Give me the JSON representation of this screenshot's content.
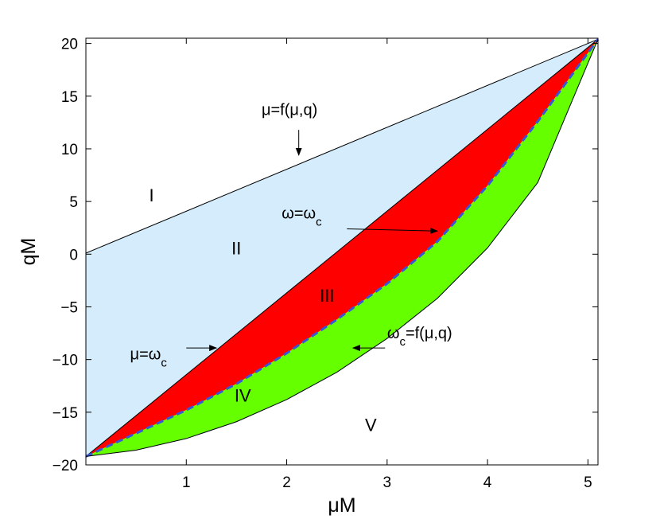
{
  "chart_data": {
    "type": "area",
    "xlabel": "μM",
    "ylabel": "qM",
    "xlim": [
      0,
      5.1
    ],
    "ylim": [
      -20,
      20.5
    ],
    "x_ticks": [
      1,
      2,
      3,
      4,
      5
    ],
    "y_ticks": [
      20,
      15,
      10,
      5,
      0,
      -5,
      -10,
      -15,
      -20
    ],
    "grid": false,
    "series": [
      {
        "color": "#000000",
        "style": "solid",
        "x": [
          0,
          5.1
        ],
        "y": [
          0.1,
          20.4
        ]
      },
      {
        "color": "#000000",
        "style": "solid",
        "x": [
          0,
          5.1
        ],
        "y": [
          -19.2,
          20.4
        ]
      },
      {
        "color": "#3a55d6",
        "style": "dashed",
        "x": [
          0,
          0.5,
          1.0,
          1.5,
          2.0,
          2.5,
          3.0,
          3.5,
          4.0,
          4.5,
          5.1
        ],
        "y": [
          -19.2,
          -17.0,
          -14.8,
          -12.3,
          -9.4,
          -6.2,
          -2.8,
          1.2,
          6.5,
          12.6,
          20.4
        ]
      },
      {
        "color": "#000000",
        "style": "solid",
        "x": [
          0,
          0.5,
          1.0,
          1.5,
          2.0,
          2.5,
          3.0,
          3.5,
          4.0,
          4.5,
          5.1
        ],
        "y": [
          -19.2,
          -18.6,
          -17.5,
          -15.9,
          -13.8,
          -11.2,
          -8.0,
          -4.2,
          0.6,
          6.8,
          20.4
        ]
      }
    ],
    "fills": [
      {
        "region": "between-series-0-and-1",
        "color": "#d4ecfb"
      },
      {
        "region": "between-series-1-and-2",
        "color": "#ff0000"
      },
      {
        "region": "between-series-2-and-3",
        "color": "#66ff00"
      }
    ],
    "region_labels": [
      {
        "text": "I",
        "x": 0.63,
        "y": 5.0
      },
      {
        "text": "II",
        "x": 1.45,
        "y": 0.0
      },
      {
        "text": "III",
        "x": 2.33,
        "y": -4.5
      },
      {
        "text": "IV",
        "x": 1.48,
        "y": -14.0
      },
      {
        "text": "V",
        "x": 2.78,
        "y": -16.8
      }
    ],
    "annotations": [
      {
        "text": "μ=f(μ,q)",
        "base": "μ=f(μ,q)",
        "sub": "",
        "tail": "",
        "text_x": 1.75,
        "text_y": 13.2,
        "arrow_from": [
          2.12,
          11.8
        ],
        "arrow_to": [
          2.12,
          9.4
        ]
      },
      {
        "text": "ω=ωc",
        "base": "ω=ω",
        "sub": "c",
        "tail": "",
        "text_x": 1.95,
        "text_y": 3.4,
        "arrow_from": [
          2.6,
          2.4
        ],
        "arrow_to": [
          3.5,
          2.2
        ]
      },
      {
        "text": "μ=ωc",
        "base": "μ=ω",
        "sub": "c",
        "tail": "",
        "text_x": 0.44,
        "text_y": -10.0,
        "arrow_from": [
          1.0,
          -8.9
        ],
        "arrow_to": [
          1.3,
          -8.9
        ]
      },
      {
        "text": "ωc=f(μ,q)",
        "base": "ω",
        "sub": "c",
        "tail": "=f(μ,q)",
        "text_x": 3.0,
        "text_y": -8.0,
        "arrow_from": [
          2.98,
          -8.9
        ],
        "arrow_to": [
          2.66,
          -8.9
        ]
      }
    ]
  }
}
